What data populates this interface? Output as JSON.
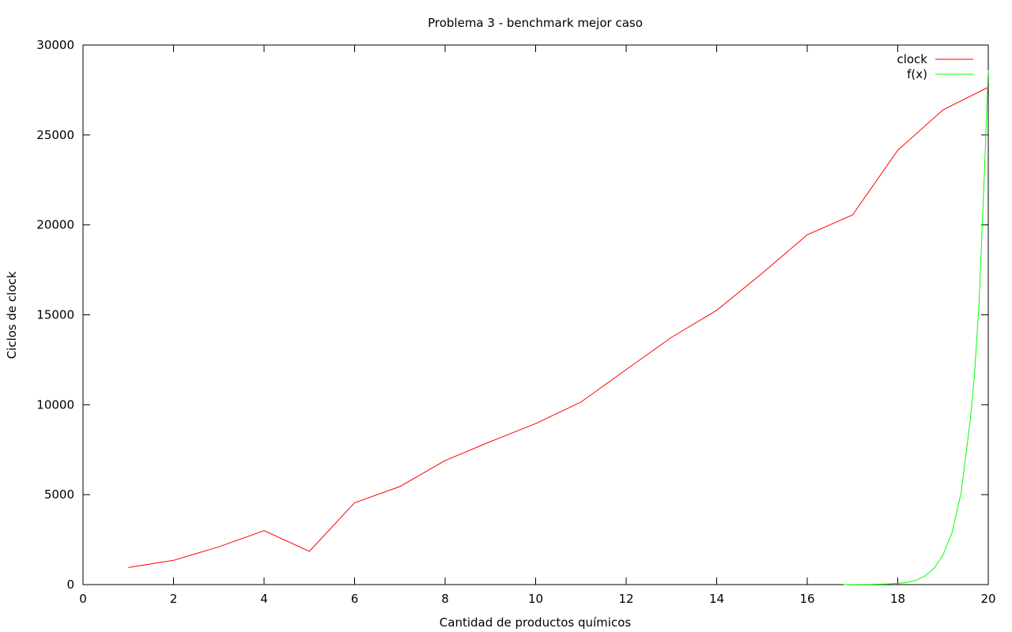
{
  "chart_data": {
    "type": "line",
    "title": "Problema 3 - benchmark mejor caso",
    "xlabel": "Cantidad de productos químicos",
    "ylabel": "Ciclos de clock",
    "xlim": [
      0,
      20
    ],
    "ylim": [
      0,
      30000
    ],
    "xticks": [
      "0",
      "2",
      "4",
      "6",
      "8",
      "10",
      "12",
      "14",
      "16",
      "18",
      "20"
    ],
    "yticks": [
      "0",
      "5000",
      "10000",
      "15000",
      "20000",
      "25000",
      "30000"
    ],
    "grid": false,
    "legend_position": "top-right",
    "series": [
      {
        "name": "clock",
        "color": "#ff0000",
        "x": [
          1,
          2,
          3,
          4,
          5,
          6,
          7,
          8,
          9,
          10,
          11,
          12,
          13,
          14,
          15,
          16,
          17,
          18,
          19,
          20
        ],
        "y": [
          950,
          1350,
          2100,
          3000,
          1850,
          4550,
          5450,
          6900,
          7950,
          8950,
          10150,
          11950,
          13750,
          15250,
          17300,
          19450,
          20550,
          24150,
          26400,
          27650
        ]
      },
      {
        "name": "f(x)",
        "color": "#00ff00",
        "x": [
          16.8,
          17.0,
          17.4,
          17.8,
          18.0,
          18.2,
          18.4,
          18.6,
          18.8,
          19.0,
          19.2,
          19.4,
          19.6,
          19.7,
          19.8,
          19.9,
          20.0
        ],
        "y": [
          0,
          5,
          15,
          40,
          70,
          120,
          230,
          480,
          900,
          1650,
          2900,
          5100,
          9100,
          11800,
          15800,
          22000,
          28600
        ]
      }
    ]
  }
}
